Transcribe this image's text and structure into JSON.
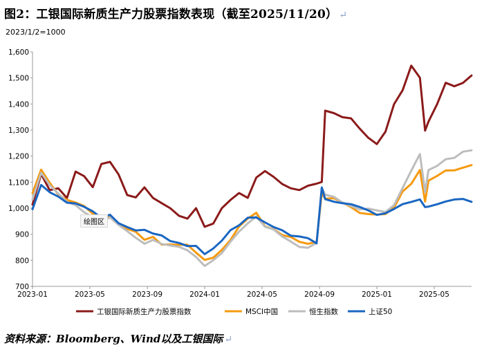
{
  "title": "图2：工银国际新质生产力股票指数表现（截至2025/11/20）",
  "return_mark": "↵",
  "base_note": "2023/1/2=1000",
  "tooltip": "绘图区",
  "source": "资料来源：Bloomberg、Wind以及工银国际",
  "chart_data": {
    "type": "line",
    "title": "图2：工银国际新质生产力股票指数表现（截至2025/11/20）",
    "ylabel": "2023/1/2=1000",
    "ylim": [
      700,
      1600
    ],
    "yticks": [
      700,
      800,
      900,
      "1,000",
      "1,100",
      "1,200",
      "1,300",
      "1,400",
      "1,500",
      "1,600"
    ],
    "ytick_values": [
      700,
      800,
      900,
      1000,
      1100,
      1200,
      1300,
      1400,
      1500,
      1600
    ],
    "xlim": [
      "2023-01",
      "2025-07"
    ],
    "xticks": [
      "2023-01",
      "2023-05",
      "2023-09",
      "2024-01",
      "2024-05",
      "2024-09",
      "2025-01",
      "2025-05"
    ],
    "xtick_values": [
      2023.0,
      2023.333,
      2023.667,
      2024.0,
      2024.333,
      2024.667,
      2025.0,
      2025.333
    ],
    "x_range": [
      2023.0,
      2025.55
    ],
    "grid": false,
    "legend_position": "bottom",
    "x": [
      2023.0,
      2023.05,
      2023.1,
      2023.15,
      2023.2,
      2023.25,
      2023.3,
      2023.35,
      2023.4,
      2023.45,
      2023.5,
      2023.55,
      2023.6,
      2023.65,
      2023.7,
      2023.75,
      2023.8,
      2023.85,
      2023.9,
      2023.95,
      2024.0,
      2024.05,
      2024.1,
      2024.15,
      2024.2,
      2024.25,
      2024.3,
      2024.35,
      2024.4,
      2024.45,
      2024.5,
      2024.55,
      2024.6,
      2024.65,
      2024.68,
      2024.7,
      2024.75,
      2024.8,
      2024.85,
      2024.9,
      2024.95,
      2025.0,
      2025.05,
      2025.1,
      2025.15,
      2025.2,
      2025.25,
      2025.28,
      2025.3,
      2025.35,
      2025.4,
      2025.45,
      2025.5,
      2025.55
    ],
    "series": [
      {
        "name": "工银国际新质生产力股票指数",
        "color": "#8b1a1a",
        "values": [
          1010,
          1130,
          1060,
          1080,
          1040,
          1150,
          1120,
          1080,
          1160,
          1180,
          1130,
          1060,
          1040,
          1080,
          1030,
          1020,
          1000,
          980,
          960,
          1000,
          920,
          940,
          1000,
          1040,
          1060,
          1040,
          1110,
          1140,
          1120,
          1100,
          1080,
          1070,
          1080,
          1090,
          1100,
          1380,
          1370,
          1350,
          1340,
          1300,
          1270,
          1250,
          1300,
          1400,
          1450,
          1540,
          1500,
          1300,
          1340,
          1400,
          1480,
          1460,
          1480,
          1510
        ]
      },
      {
        "name": "MSCI中国",
        "color": "#f59a10",
        "values": [
          1050,
          1150,
          1100,
          1060,
          1030,
          1020,
          1000,
          980,
          960,
          980,
          940,
          920,
          900,
          880,
          890,
          870,
          860,
          860,
          850,
          830,
          800,
          820,
          840,
          880,
          920,
          960,
          980,
          940,
          920,
          900,
          880,
          870,
          860,
          880,
          1060,
          1040,
          1030,
          1020,
          1000,
          990,
          980,
          980,
          970,
          1000,
          1060,
          1100,
          1150,
          1030,
          1100,
          1120,
          1140,
          1150,
          1160,
          1170
        ]
      },
      {
        "name": "恒生指数",
        "color": "#bdbdbd",
        "values": [
          1040,
          1140,
          1090,
          1050,
          1020,
          1010,
          990,
          970,
          950,
          960,
          930,
          910,
          890,
          870,
          880,
          860,
          850,
          850,
          840,
          820,
          780,
          800,
          820,
          870,
          910,
          950,
          970,
          930,
          910,
          890,
          870,
          860,
          850,
          870,
          1070,
          1050,
          1040,
          1030,
          1010,
          1000,
          990,
          990,
          980,
          1020,
          1080,
          1150,
          1200,
          1060,
          1140,
          1170,
          1190,
          1200,
          1210,
          1220
        ]
      },
      {
        "name": "上证50",
        "color": "#1a66c2",
        "values": [
          1000,
          1080,
          1060,
          1040,
          1030,
          1020,
          1010,
          980,
          960,
          970,
          950,
          930,
          920,
          910,
          900,
          890,
          880,
          870,
          860,
          850,
          820,
          840,
          880,
          920,
          940,
          960,
          960,
          940,
          930,
          920,
          900,
          890,
          880,
          860,
          1080,
          1040,
          1030,
          1020,
          1010,
          1000,
          990,
          980,
          985,
          1000,
          1010,
          1020,
          1030,
          1010,
          1010,
          1020,
          1020,
          1030,
          1030,
          1030
        ]
      }
    ]
  }
}
